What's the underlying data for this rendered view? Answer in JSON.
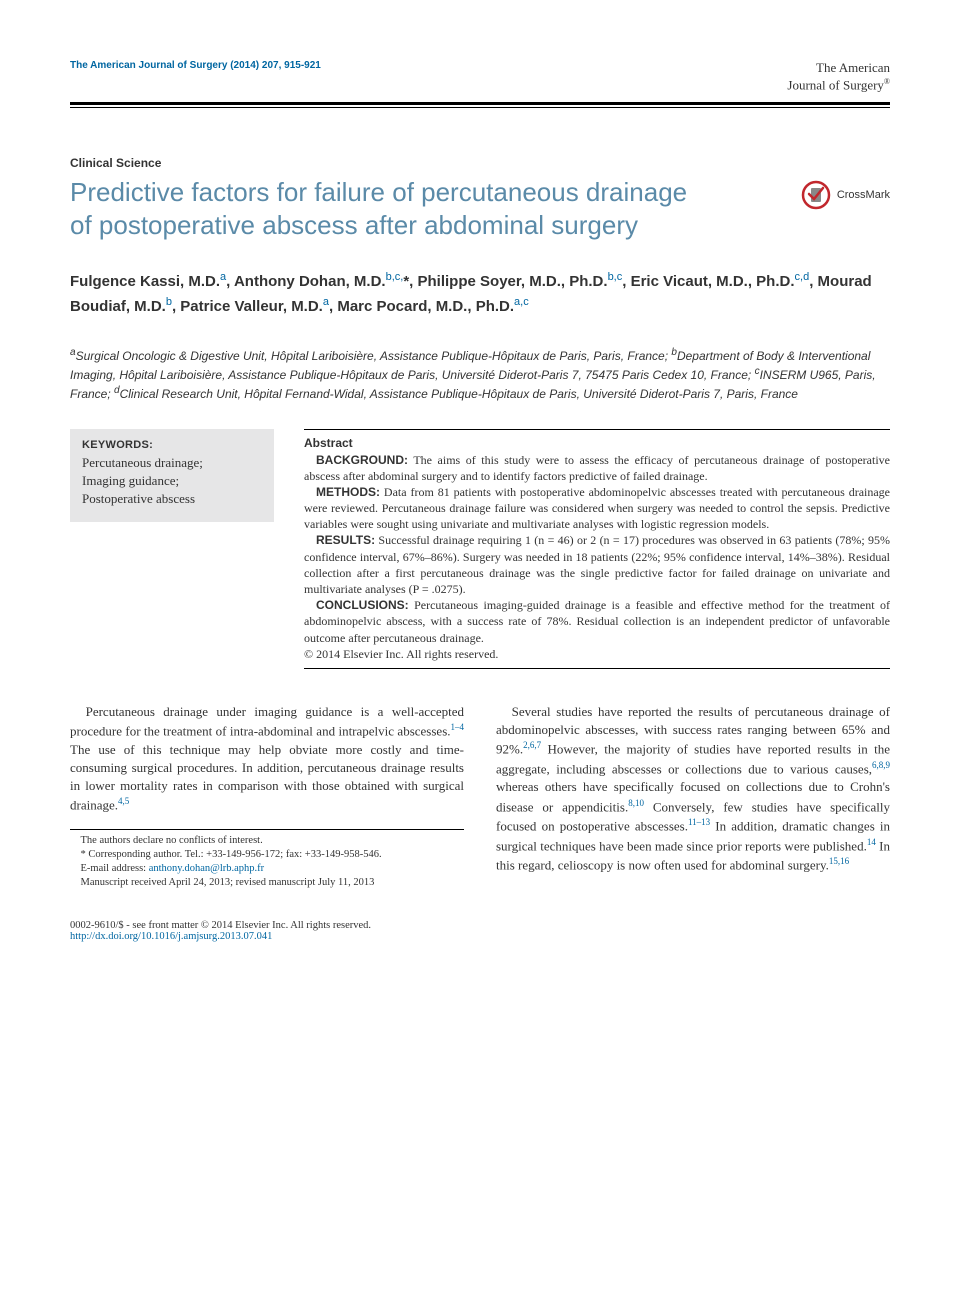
{
  "header": {
    "citation": "The American Journal of Surgery (2014) 207, 915-921",
    "brand_line1": "The American",
    "brand_line2": "Journal of Surgery"
  },
  "section_label": "Clinical Science",
  "title": "Predictive factors for failure of percutaneous drainage of postoperative abscess after abdominal surgery",
  "crossmark_label": "CrossMark",
  "authors_html": "Fulgence Kassi, M.D.<sup>a</sup>, Anthony Dohan, M.D.<sup>b,c,</sup>*, Philippe Soyer, M.D., Ph.D.<sup>b,c</sup>, Eric Vicaut, M.D., Ph.D.<sup>c,d</sup>, Mourad Boudiaf, M.D.<sup>b</sup>, Patrice Valleur, M.D.<sup>a</sup>, Marc Pocard, M.D., Ph.D.<sup>a,c</sup>",
  "affiliations_html": "<sup>a</sup>Surgical Oncologic & Digestive Unit, Hôpital Lariboisière, Assistance Publique-Hôpitaux de Paris, Paris, France; <sup>b</sup>Department of Body & Interventional Imaging, Hôpital Lariboisière, Assistance Publique-Hôpitaux de Paris, Université Diderot-Paris 7, 75475 Paris Cedex 10, France; <sup>c</sup>INSERM U965, Paris, France; <sup>d</sup>Clinical Research Unit, Hôpital Fernand-Widal, Assistance Publique-Hôpitaux de Paris, Université Diderot-Paris 7, Paris, France",
  "keywords": {
    "title": "KEYWORDS:",
    "items": [
      "Percutaneous drainage;",
      "Imaging guidance;",
      "Postoperative abscess"
    ]
  },
  "abstract": {
    "heading": "Abstract",
    "sections": [
      {
        "label": "BACKGROUND:",
        "text": "The aims of this study were to assess the efficacy of percutaneous drainage of postoperative abscess after abdominal surgery and to identify factors predictive of failed drainage."
      },
      {
        "label": "METHODS:",
        "text": "Data from 81 patients with postoperative abdominopelvic abscesses treated with percutaneous drainage were reviewed. Percutaneous drainage failure was considered when surgery was needed to control the sepsis. Predictive variables were sought using univariate and multivariate analyses with logistic regression models."
      },
      {
        "label": "RESULTS:",
        "text": "Successful drainage requiring 1 (n = 46) or 2 (n = 17) procedures was observed in 63 patients (78%; 95% confidence interval, 67%–86%). Surgery was needed in 18 patients (22%; 95% confidence interval, 14%–38%). Residual collection after a first percutaneous drainage was the single predictive factor for failed drainage on univariate and multivariate analyses (P = .0275)."
      },
      {
        "label": "CONCLUSIONS:",
        "text": "Percutaneous imaging-guided drainage is a feasible and effective method for the treatment of abdominopelvic abscess, with a success rate of 78%. Residual collection is an independent predictor of unfavorable outcome after percutaneous drainage."
      }
    ],
    "copyright": "© 2014 Elsevier Inc. All rights reserved."
  },
  "body": {
    "left": "Percutaneous drainage under imaging guidance is a well-accepted procedure for the treatment of intra-abdominal and intrapelvic abscesses.<span class=\"ref\">1–4</span> The use of this technique may help obviate more costly and time-consuming surgical procedures. In addition, percutaneous drainage results in lower mortality rates in comparison with those obtained with surgical drainage.<span class=\"ref\">4,5</span>",
    "right": "Several studies have reported the results of percutaneous drainage of abdominopelvic abscesses, with success rates ranging between 65% and 92%.<span class=\"ref\">2,6,7</span> However, the majority of studies have reported results in the aggregate, including abscesses or collections due to various causes,<span class=\"ref\">6,8,9</span> whereas others have specifically focused on collections due to Crohn's disease or appendicitis.<span class=\"ref\">8,10</span> Conversely, few studies have specifically focused on postoperative abscesses.<span class=\"ref\">11–13</span> In addition, dramatic changes in surgical techniques have been made since prior reports were published.<span class=\"ref\">14</span> In this regard, celioscopy is now often used for abdominal surgery.<span class=\"ref\">15,16</span>"
  },
  "footnotes": {
    "conflict": "The authors declare no conflicts of interest.",
    "corresponding": "* Corresponding author. Tel.: +33-149-956-172; fax: +33-149-958-546.",
    "email_label": "E-mail address:",
    "email": "anthony.dohan@lrb.aphp.fr",
    "manuscript": "Manuscript received April 24, 2013; revised manuscript July 11, 2013"
  },
  "copyright": {
    "line1": "0002-9610/$ - see front matter © 2014 Elsevier Inc. All rights reserved.",
    "doi": "http://dx.doi.org/10.1016/j.amjsurg.2013.07.041"
  },
  "colors": {
    "link_blue": "#0066a1",
    "title_blue": "#5a8aa8",
    "keywords_bg": "#e6e6e7",
    "crossmark_red": "#c1272d",
    "crossmark_gray": "#888888"
  }
}
